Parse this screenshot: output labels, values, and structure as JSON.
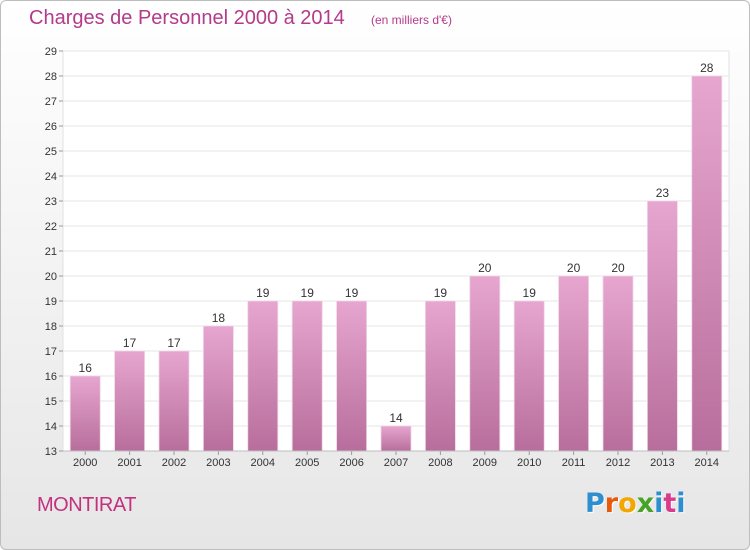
{
  "header": {
    "title": "Charges de Personnel 2000 à 2014",
    "subtitle": "(en milliers d'€)"
  },
  "footer": {
    "commune": "MONTIRAT",
    "logo_letters": [
      "P",
      "r",
      "o",
      "x",
      "i",
      "t",
      "i"
    ]
  },
  "colors": {
    "title": "#b43a8a",
    "bar_top": "#e6a6cf",
    "bar_bottom": "#b86e9c",
    "logo": [
      "#2e8fd0",
      "#e8590c",
      "#f2a600",
      "#46a325",
      "#2e8fd0",
      "#d93a8b",
      "#2e8fd0"
    ]
  },
  "chart_data": {
    "type": "bar",
    "title": "Charges de Personnel 2000 à 2014",
    "subtitle": "(en milliers d'€)",
    "categories": [
      "2000",
      "2001",
      "2002",
      "2003",
      "2004",
      "2005",
      "2006",
      "2007",
      "2008",
      "2009",
      "2010",
      "2011",
      "2012",
      "2013",
      "2014"
    ],
    "values": [
      16,
      17,
      17,
      18,
      19,
      19,
      19,
      14,
      19,
      20,
      19,
      20,
      20,
      23,
      28
    ],
    "ylim": [
      13,
      29
    ],
    "yticks": [
      13,
      14,
      15,
      16,
      17,
      18,
      19,
      20,
      21,
      22,
      23,
      24,
      25,
      26,
      27,
      28,
      29
    ],
    "xlabel": "",
    "ylabel": "",
    "grid": true,
    "data_labels": true
  }
}
